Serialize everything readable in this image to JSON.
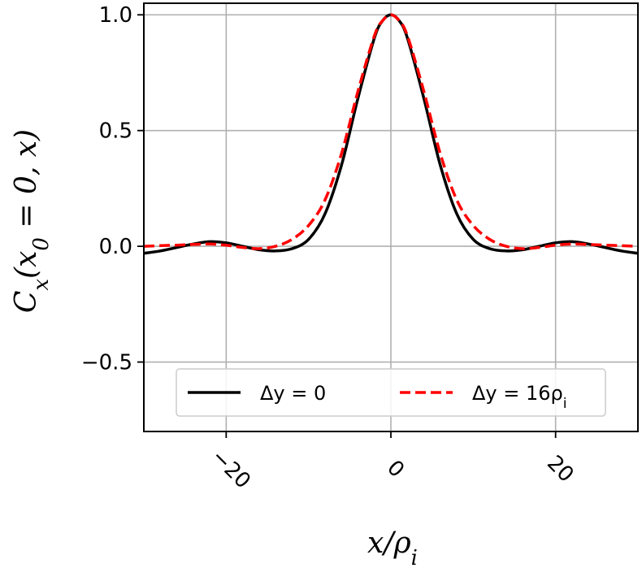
{
  "chart_data": {
    "type": "line",
    "title": "",
    "xlabel": "x/ρ_i",
    "ylabel": "C_x(x_0 = 0, x)",
    "xlim": [
      -30,
      30
    ],
    "ylim": [
      -0.8,
      1.05
    ],
    "xticks": [
      -20,
      0,
      20
    ],
    "xtick_labels": [
      "−20",
      "0",
      "20"
    ],
    "yticks": [
      -0.5,
      0.0,
      0.5,
      1.0
    ],
    "ytick_labels": [
      "−0.5",
      "0.0",
      "0.5",
      "1.0"
    ],
    "grid": true,
    "legend_position": "bottom-center",
    "series": [
      {
        "name": "Δy = 0",
        "color": "#000000",
        "dash": "solid",
        "x": [
          -30,
          -28,
          -26,
          -24,
          -22,
          -20,
          -18,
          -16,
          -14,
          -12,
          -10,
          -8,
          -6,
          -4,
          -2,
          -1,
          0,
          1,
          2,
          4,
          6,
          8,
          10,
          12,
          14,
          16,
          18,
          20,
          22,
          24,
          26,
          28,
          30
        ],
        "y": [
          -0.03,
          -0.02,
          -0.005,
          0.01,
          0.02,
          0.015,
          0.0,
          -0.015,
          -0.02,
          -0.01,
          0.03,
          0.14,
          0.35,
          0.64,
          0.9,
          0.975,
          1.0,
          0.975,
          0.9,
          0.64,
          0.35,
          0.14,
          0.03,
          -0.01,
          -0.02,
          -0.015,
          0.0,
          0.015,
          0.02,
          0.01,
          -0.005,
          -0.02,
          -0.03
        ]
      },
      {
        "name": "Δy = 16ρ_i",
        "color": "#ff0000",
        "dash": "dashed",
        "x": [
          -30,
          -28,
          -26,
          -24,
          -22,
          -20,
          -18,
          -16,
          -14,
          -12,
          -10,
          -8,
          -6,
          -4,
          -2,
          -1,
          0,
          1,
          2,
          4,
          6,
          8,
          10,
          12,
          14,
          16,
          18,
          20,
          22,
          24,
          26,
          28,
          30
        ],
        "y": [
          0.0,
          0.003,
          0.005,
          0.008,
          0.01,
          0.005,
          -0.005,
          -0.01,
          0.0,
          0.03,
          0.09,
          0.2,
          0.4,
          0.67,
          0.91,
          0.975,
          1.0,
          0.975,
          0.91,
          0.67,
          0.4,
          0.2,
          0.09,
          0.03,
          0.0,
          -0.01,
          -0.005,
          0.005,
          0.01,
          0.008,
          0.005,
          0.003,
          0.0
        ]
      }
    ]
  }
}
